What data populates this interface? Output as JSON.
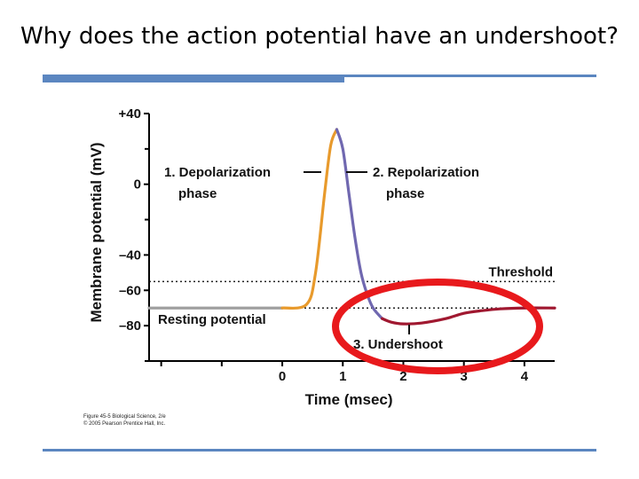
{
  "slide": {
    "title": "Why does the action potential have an undershoot?",
    "credit_line1": "Figure 45-5  Biological Science, 2/e",
    "credit_line2": "© 2005 Pearson Prentice Hall, Inc."
  },
  "colors": {
    "accent_bar": "#5b86c0",
    "resting": "#a0a0a0",
    "depolarization": "#e89a2c",
    "repolarization": "#7068b0",
    "undershoot": "#a01830",
    "highlight_ring": "#e8191c"
  },
  "chart_data": {
    "type": "line",
    "title": "",
    "xlabel": "Time (msec)",
    "ylabel": "Membrane potential (mV)",
    "xlim": [
      -2.2,
      4.5
    ],
    "ylim": [
      -100,
      40
    ],
    "x_ticks": [
      0,
      1,
      2,
      3,
      4
    ],
    "x_tick_labels": [
      "0",
      "1",
      "2",
      "3",
      "4"
    ],
    "y_ticks": [
      40,
      0,
      -40,
      -60,
      -80
    ],
    "y_tick_labels": [
      "+40",
      "0",
      "–40",
      "–60",
      "–80"
    ],
    "threshold": {
      "label": "Threshold",
      "value": -55
    },
    "resting_level": -70,
    "series": [
      {
        "phase": "resting",
        "x": [
          -2.2,
          -1.0,
          0.0
        ],
        "y": [
          -70,
          -70,
          -70
        ]
      },
      {
        "phase": "depolarization",
        "x": [
          0.0,
          0.4,
          0.55,
          0.7,
          0.8,
          0.9
        ],
        "y": [
          -70,
          -68,
          -50,
          -5,
          22,
          31
        ]
      },
      {
        "phase": "repolarization",
        "x": [
          0.9,
          1.0,
          1.1,
          1.2,
          1.3,
          1.4,
          1.5,
          1.65
        ],
        "y": [
          31,
          20,
          -5,
          -30,
          -50,
          -62,
          -70,
          -76
        ]
      },
      {
        "phase": "undershoot",
        "x": [
          1.65,
          1.8,
          2.0,
          2.3,
          2.7,
          3.0,
          3.3,
          3.6,
          4.0,
          4.5
        ],
        "y": [
          -76,
          -78,
          -79,
          -78.5,
          -76,
          -73,
          -71.5,
          -70.5,
          -70,
          -70
        ]
      }
    ],
    "annotations": {
      "depolarization": {
        "number": "1.",
        "line1": "Depolarization",
        "line2": "phase"
      },
      "repolarization": {
        "number": "2.",
        "line1": "Repolarization",
        "line2": "phase"
      },
      "undershoot": {
        "number": "3.",
        "line1": "Undershoot"
      },
      "resting": {
        "line1": "Resting potential"
      }
    }
  }
}
